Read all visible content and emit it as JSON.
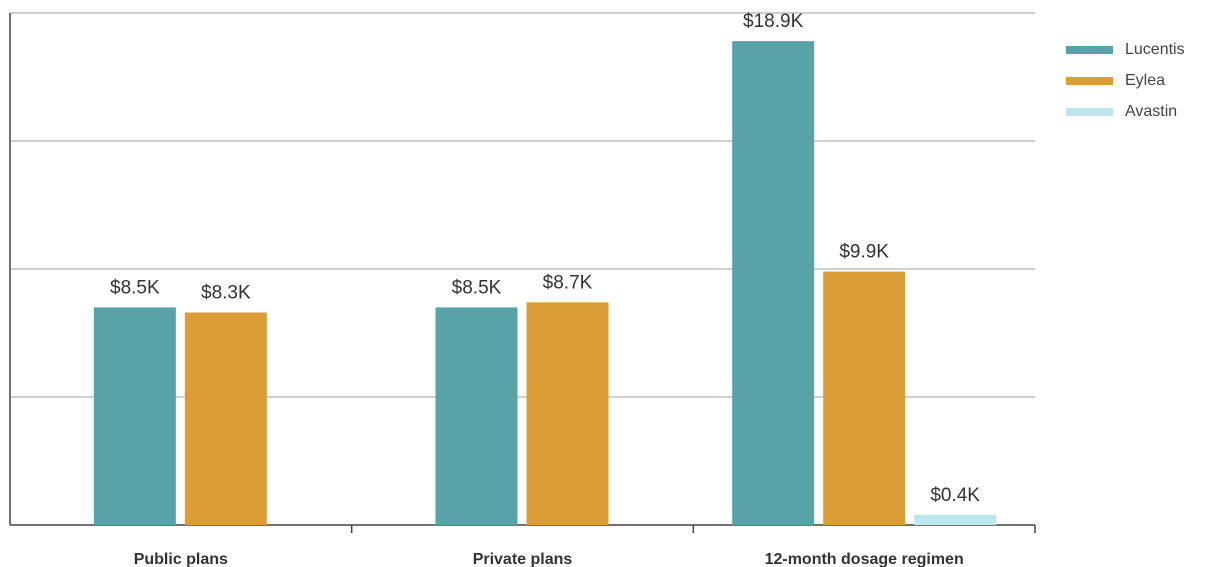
{
  "chart_data": {
    "type": "bar",
    "categories": [
      "Public plans",
      "Private plans",
      "12-month dosage regimen"
    ],
    "series": [
      {
        "name": "Lucentis",
        "color": "#57a3a8",
        "values": [
          8.5,
          8.5,
          18.9
        ],
        "labels": [
          "$8.5K",
          "$8.5K",
          "$18.9K"
        ]
      },
      {
        "name": "Eylea",
        "color": "#db9e36",
        "values": [
          8.3,
          8.7,
          9.9
        ],
        "labels": [
          "$8.3K",
          "$8.7K",
          "$9.9K"
        ]
      },
      {
        "name": "Avastin",
        "color": "#bde6ed",
        "values": [
          null,
          null,
          0.4
        ],
        "labels": [
          "",
          "",
          "$0.4K"
        ]
      }
    ],
    "title": "",
    "xlabel": "",
    "ylabel": "",
    "ylim": [
      0,
      20
    ],
    "grid": true,
    "legend_position": "top-right"
  }
}
